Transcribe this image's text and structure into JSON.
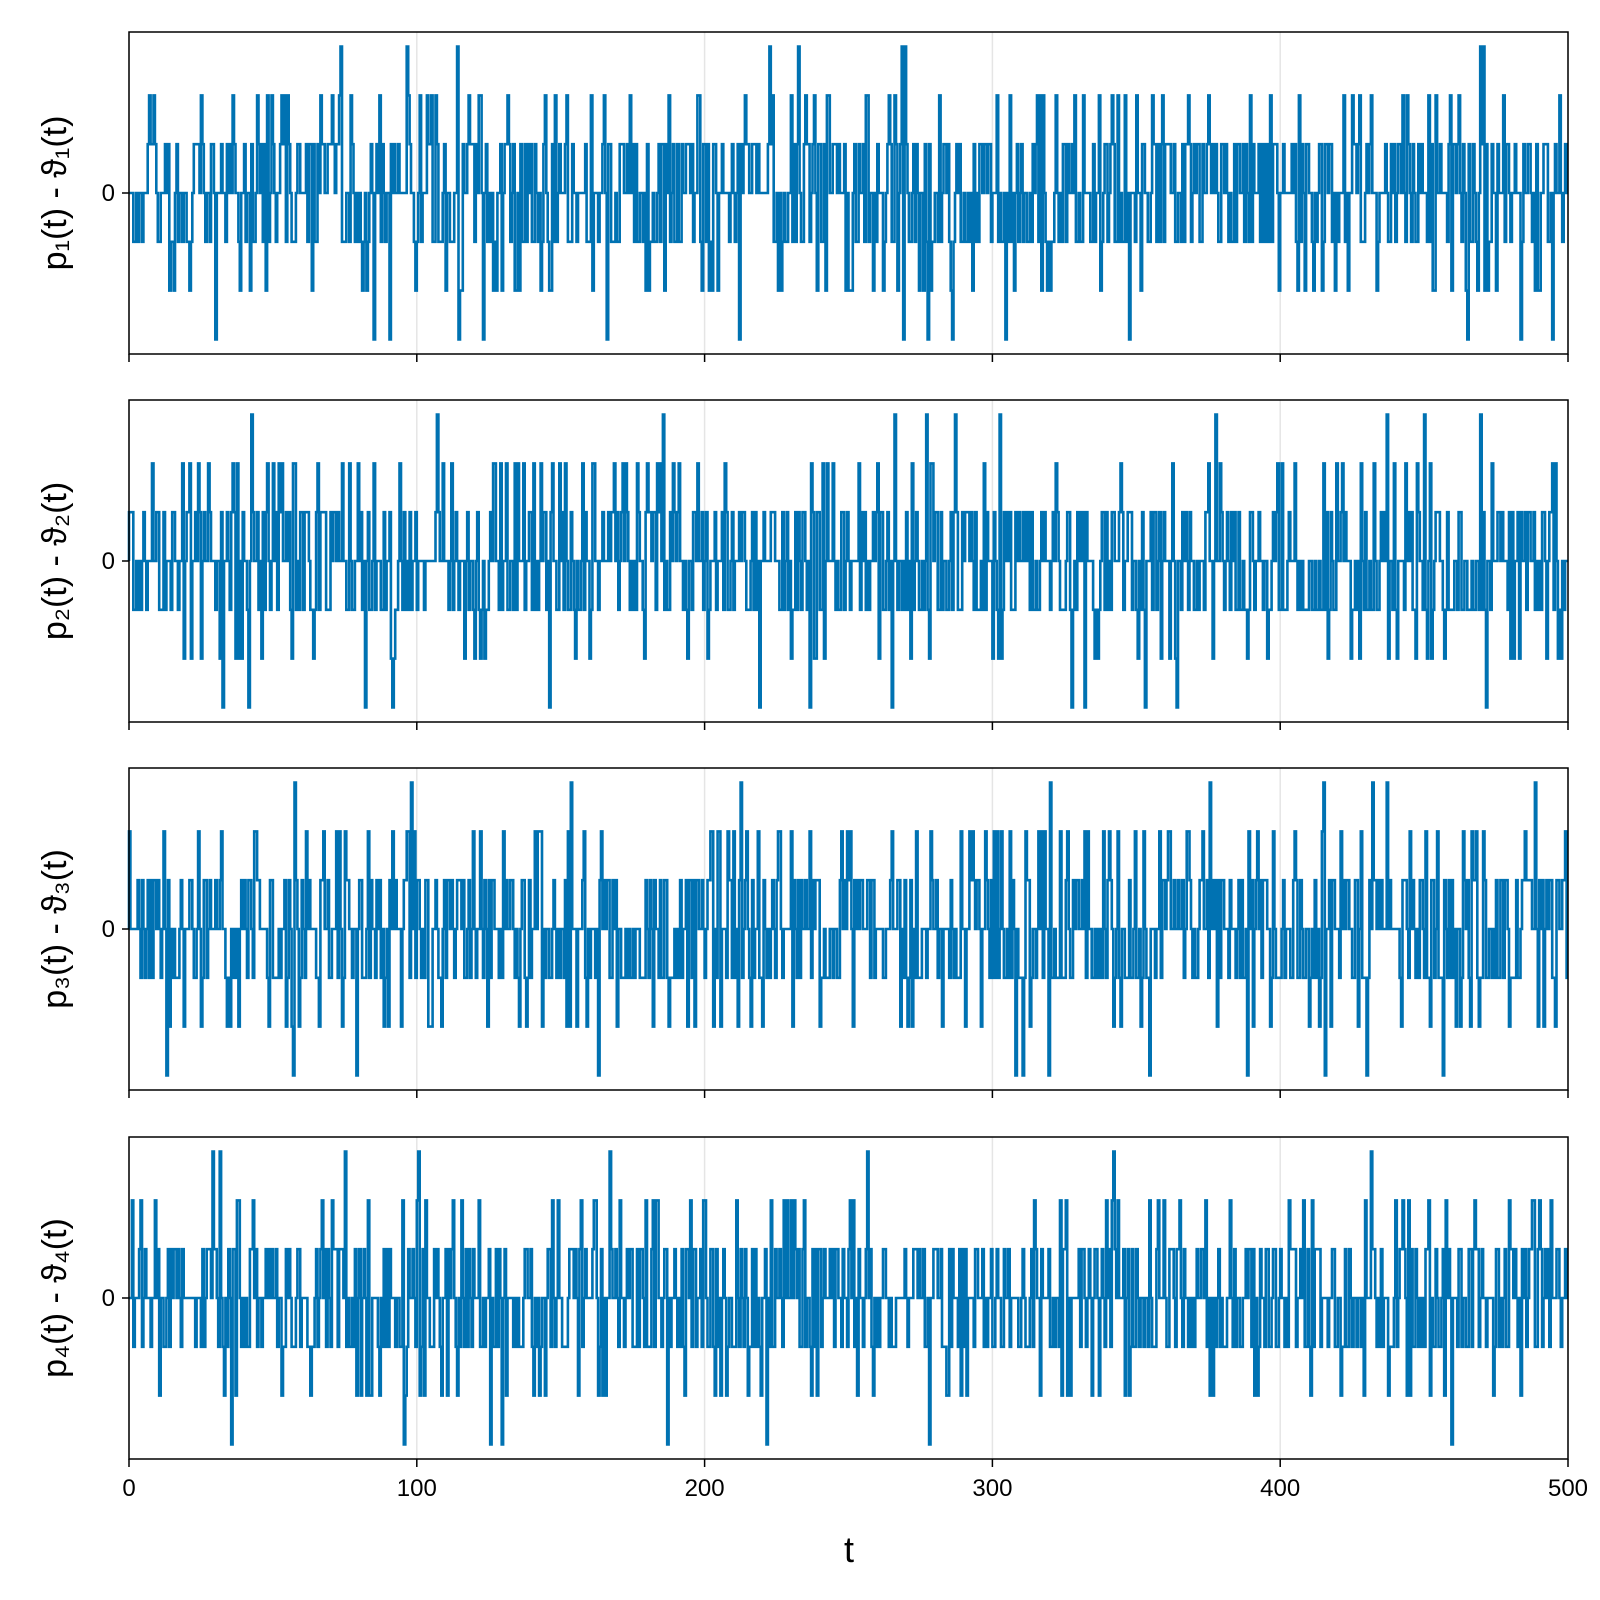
{
  "chart_data": {
    "type": "line",
    "layout": "4 vertically stacked panels sharing the x axis",
    "xlabel": "t",
    "xlim": [
      0,
      500
    ],
    "xticks": [
      0,
      100,
      200,
      300,
      400,
      500
    ],
    "x_tick_labels": [
      "0",
      "100",
      "200",
      "300",
      "400",
      "500"
    ],
    "x_tick_labels_on": "bottom panel only",
    "grid": "vertical gridlines at x ticks",
    "line_color": "#0072b2",
    "signal_description": "piecewise-constant integer-level noise around 0, changing level every 0.5 time units",
    "panels": [
      {
        "ylabel": "p₁(t) - ϑ₁(t)",
        "ylim": [
          -3.3,
          3.3
        ],
        "yticks": [
          0
        ],
        "y_tick_labels": [
          "0"
        ],
        "series": {
          "start": 0,
          "step": 0.5,
          "levels": [
            0,
            1,
            2,
            3,
            -1,
            -2,
            -3
          ],
          "level_weights": [
            0.36,
            0.24,
            0.07,
            0.01,
            0.24,
            0.07,
            0.01
          ],
          "seed": 11
        }
      },
      {
        "ylabel": "p₂(t) - ϑ₂(t)",
        "ylim": [
          -3.3,
          3.3
        ],
        "yticks": [
          0
        ],
        "y_tick_labels": [
          "0"
        ],
        "series": {
          "start": 0,
          "step": 0.5,
          "levels": [
            0,
            1,
            2,
            3,
            -1,
            -2,
            -3
          ],
          "level_weights": [
            0.36,
            0.24,
            0.07,
            0.01,
            0.24,
            0.07,
            0.01
          ],
          "seed": 23
        }
      },
      {
        "ylabel": "p₃(t) - ϑ₃(t)",
        "ylim": [
          -3.3,
          3.3
        ],
        "yticks": [
          0
        ],
        "y_tick_labels": [
          "0"
        ],
        "series": {
          "start": 0,
          "step": 0.5,
          "levels": [
            0,
            1,
            2,
            3,
            -1,
            -2,
            -3
          ],
          "level_weights": [
            0.36,
            0.24,
            0.07,
            0.01,
            0.24,
            0.07,
            0.01
          ],
          "seed": 37
        }
      },
      {
        "ylabel": "p₄(t) - ϑ₄(t)",
        "ylim": [
          -3.3,
          3.3
        ],
        "yticks": [
          0
        ],
        "y_tick_labels": [
          "0"
        ],
        "series": {
          "start": 0,
          "step": 0.5,
          "levels": [
            0,
            1,
            2,
            3,
            -1,
            -2,
            -3
          ],
          "level_weights": [
            0.36,
            0.24,
            0.07,
            0.01,
            0.24,
            0.07,
            0.01
          ],
          "seed": 53
        }
      }
    ]
  }
}
